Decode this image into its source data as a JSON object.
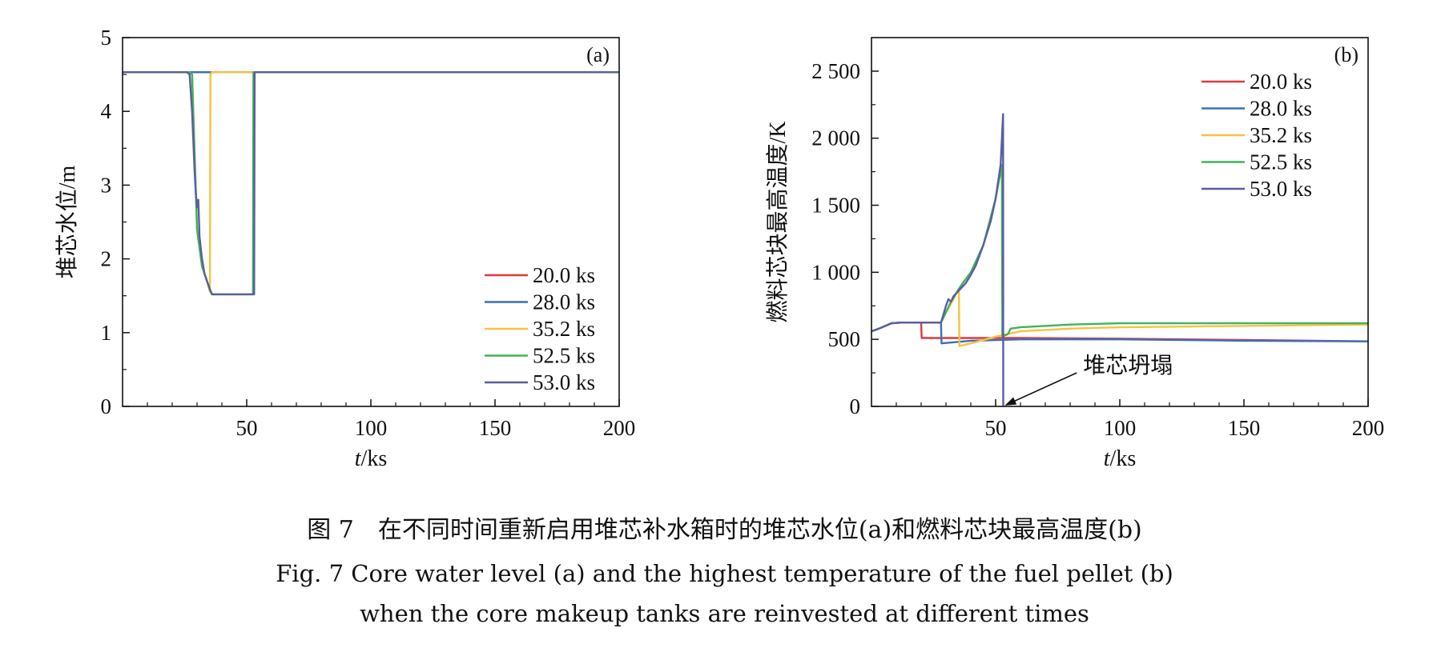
{
  "caption": {
    "zh": "图 7　在不同时间重新启用堆芯补水箱时的堆芯水位(a)和燃料芯块最高温度(b)",
    "en_line1": "Fig. 7  Core water level (a) and the highest temperature of the fuel pellet (b)",
    "en_line2": "when the core makeup tanks are reinvested at different times"
  },
  "chart_data": [
    {
      "type": "line",
      "panel": "(a)",
      "xlabel_italic": "t",
      "xlabel_unit": "/ks",
      "ylabel": "堆芯水位/m",
      "xlim": [
        0,
        200
      ],
      "ylim": [
        0,
        5
      ],
      "x_ticks": [
        50,
        100,
        150,
        200
      ],
      "y_ticks": [
        0,
        1,
        2,
        3,
        4,
        5
      ],
      "x_tick_labels": [
        "50",
        "100",
        "150",
        "200"
      ],
      "y_tick_labels": [
        "0",
        "1",
        "2",
        "3",
        "4",
        "5"
      ],
      "legend_placement": "bottom-right",
      "grid": false,
      "series": [
        {
          "name": "20.0 ks",
          "color": "#e0393b",
          "x": [
            0,
            20,
            200
          ],
          "y": [
            4.53,
            4.53,
            4.53
          ]
        },
        {
          "name": "28.0 ks",
          "color": "#3b6fb6",
          "x": [
            0,
            28,
            200
          ],
          "y": [
            4.53,
            4.53,
            4.53
          ]
        },
        {
          "name": "35.2 ks",
          "color": "#f5c242",
          "x": [
            0,
            27,
            28,
            30,
            32,
            34,
            35.2,
            35.4,
            36,
            200
          ],
          "y": [
            4.53,
            4.53,
            4.5,
            2.4,
            1.9,
            1.7,
            1.55,
            4.5,
            4.53,
            4.53
          ]
        },
        {
          "name": "52.5 ks",
          "color": "#3fb35a",
          "x": [
            0,
            27,
            28,
            30,
            32,
            34,
            36,
            52.5,
            52.7,
            200
          ],
          "y": [
            4.53,
            4.53,
            4.5,
            2.4,
            1.9,
            1.7,
            1.52,
            1.52,
            4.53,
            4.53
          ]
        },
        {
          "name": "53.0 ks",
          "color": "#5a5e9e",
          "x": [
            0,
            26,
            27,
            28,
            29,
            29.5,
            30,
            30.5,
            31,
            32,
            33,
            34,
            35,
            36,
            53,
            53.2,
            200
          ],
          "y": [
            4.53,
            4.53,
            4.5,
            4.0,
            3.2,
            2.9,
            2.7,
            2.8,
            2.3,
            2.0,
            1.8,
            1.7,
            1.6,
            1.52,
            1.52,
            4.53,
            4.53
          ]
        }
      ]
    },
    {
      "type": "line",
      "panel": "(b)",
      "xlabel_italic": "t",
      "xlabel_unit": "/ks",
      "ylabel": "燃料芯块最高温度/K",
      "xlim": [
        0,
        200
      ],
      "ylim": [
        0,
        2750
      ],
      "x_ticks": [
        50,
        100,
        150,
        200
      ],
      "y_ticks": [
        0,
        500,
        1000,
        1500,
        2000,
        2500
      ],
      "x_tick_labels": [
        "50",
        "100",
        "150",
        "200"
      ],
      "y_tick_labels": [
        "0",
        "500",
        "1 000",
        "1 500",
        "2 000",
        "2 500"
      ],
      "legend_placement": "top-right",
      "grid": false,
      "annotation": "堆芯坍塌",
      "annotation_target": [
        53,
        0
      ],
      "series": [
        {
          "name": "20.0 ks",
          "color": "#e0393b",
          "x": [
            0,
            3,
            8,
            12,
            20,
            20.2,
            30,
            60,
            100,
            150,
            200
          ],
          "y": [
            560,
            580,
            620,
            625,
            625,
            510,
            510,
            510,
            505,
            495,
            485
          ]
        },
        {
          "name": "28.0 ks",
          "color": "#3b6fb6",
          "x": [
            0,
            3,
            8,
            12,
            28,
            28.2,
            40,
            60,
            100,
            150,
            200
          ],
          "y": [
            560,
            580,
            620,
            625,
            625,
            470,
            490,
            500,
            500,
            490,
            485
          ]
        },
        {
          "name": "35.2 ks",
          "color": "#f5c242",
          "x": [
            0,
            3,
            8,
            12,
            28,
            30,
            33,
            35.2,
            35.4,
            40,
            50,
            60,
            80,
            100,
            150,
            200
          ],
          "y": [
            560,
            580,
            620,
            625,
            625,
            700,
            800,
            880,
            450,
            470,
            520,
            560,
            580,
            590,
            600,
            610
          ]
        },
        {
          "name": "52.5 ks",
          "color": "#3fb35a",
          "x": [
            0,
            3,
            8,
            12,
            28,
            32,
            36,
            40,
            45,
            50,
            52.5,
            52.7,
            55,
            56,
            60,
            80,
            100,
            150,
            200
          ],
          "y": [
            560,
            580,
            620,
            625,
            625,
            780,
            900,
            1000,
            1200,
            1550,
            1800,
            520,
            540,
            580,
            590,
            610,
            620,
            620,
            620
          ]
        },
        {
          "name": "53.0 ks",
          "color": "#5a5e9e",
          "x": [
            0,
            3,
            8,
            12,
            28,
            30,
            31,
            32,
            33,
            35,
            36,
            38,
            40,
            42,
            45,
            48,
            50,
            52,
            53,
            53.05
          ],
          "y": [
            560,
            580,
            620,
            625,
            625,
            750,
            800,
            780,
            820,
            860,
            880,
            920,
            980,
            1050,
            1200,
            1380,
            1550,
            1800,
            2180,
            0
          ]
        }
      ]
    }
  ]
}
